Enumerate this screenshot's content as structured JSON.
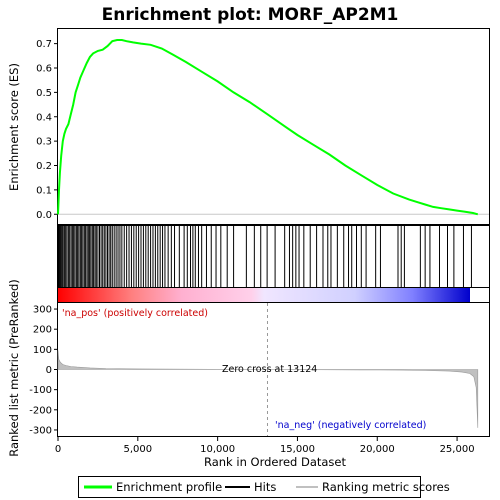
{
  "chart_data": {
    "type": "line",
    "title": "Enrichment plot: MORF_AP2M1",
    "xlabel": "Rank in Ordered Dataset",
    "xlim": [
      0,
      27000
    ],
    "x_ticks": [
      0,
      5000,
      10000,
      15000,
      20000,
      25000
    ],
    "x_tick_labels": [
      "0",
      "5,000",
      "10,000",
      "15,000",
      "20,000",
      "25,000"
    ],
    "es_panel": {
      "ylabel": "Enrichment score (ES)",
      "ylim": [
        -0.04,
        0.76
      ],
      "y_ticks": [
        0.0,
        0.1,
        0.2,
        0.3,
        0.4,
        0.5,
        0.6,
        0.7
      ],
      "y_tick_labels": [
        "0.0",
        "0.1",
        "0.2",
        "0.3",
        "0.4",
        "0.5",
        "0.6",
        "0.7"
      ],
      "series": [
        {
          "name": "Enrichment profile",
          "color": "#00ff00",
          "x": [
            0,
            60,
            120,
            200,
            300,
            400,
            500,
            650,
            800,
            950,
            1100,
            1250,
            1400,
            1600,
            1800,
            2000,
            2200,
            2500,
            2800,
            3100,
            3400,
            3700,
            4000,
            4300,
            4700,
            5200,
            5800,
            6500,
            7200,
            8000,
            9000,
            10000,
            11000,
            12000,
            13124,
            14000,
            15000,
            16000,
            17000,
            18000,
            19000,
            20000,
            21000,
            22000,
            22500,
            23000,
            23500,
            24000,
            24500,
            25000,
            25500,
            26000,
            26300
          ],
          "values": [
            0.0,
            0.1,
            0.17,
            0.24,
            0.3,
            0.33,
            0.35,
            0.37,
            0.41,
            0.45,
            0.5,
            0.53,
            0.56,
            0.59,
            0.62,
            0.645,
            0.66,
            0.67,
            0.675,
            0.69,
            0.71,
            0.715,
            0.715,
            0.71,
            0.705,
            0.7,
            0.695,
            0.68,
            0.655,
            0.625,
            0.585,
            0.545,
            0.5,
            0.46,
            0.41,
            0.37,
            0.325,
            0.285,
            0.245,
            0.2,
            0.16,
            0.12,
            0.085,
            0.06,
            0.05,
            0.04,
            0.03,
            0.025,
            0.02,
            0.015,
            0.01,
            0.005,
            0.0
          ]
        }
      ]
    },
    "hits": {
      "name": "Hits",
      "color": "#000000",
      "positions": [
        10,
        60,
        120,
        180,
        250,
        320,
        400,
        480,
        560,
        650,
        730,
        820,
        900,
        980,
        1060,
        1150,
        1230,
        1310,
        1400,
        1480,
        1560,
        1650,
        1730,
        1820,
        1900,
        1980,
        2060,
        2150,
        2230,
        2320,
        2400,
        2500,
        2600,
        2700,
        2800,
        2900,
        3000,
        3100,
        3200,
        3300,
        3400,
        3520,
        3640,
        3760,
        3880,
        4000,
        4150,
        4300,
        4450,
        4600,
        4750,
        4900,
        5050,
        5200,
        5350,
        5500,
        5650,
        5800,
        5950,
        6100,
        6250,
        6400,
        6550,
        6700,
        6900,
        7100,
        7300,
        7600,
        7900,
        8100,
        8300,
        8450,
        8600,
        8800,
        9000,
        9300,
        9600,
        9900,
        10200,
        10600,
        11000,
        11800,
        12300,
        12700,
        13100,
        13600,
        14200,
        14500,
        14700,
        14900,
        15100,
        15400,
        15800,
        16200,
        16600,
        16900,
        17100,
        17500,
        17900,
        18200,
        18400,
        18700,
        19000,
        19300,
        19900,
        20200,
        21300,
        21500,
        21700,
        22700,
        23000,
        23300,
        23900,
        24400,
        24800,
        25400,
        25900
      ]
    },
    "metric_panel": {
      "name": "Ranking metric scores",
      "color": "#c0c0c0",
      "ylabel": "Ranked list metric (PreRanked)",
      "ylim": [
        -330,
        330
      ],
      "y_ticks": [
        300,
        200,
        100,
        0,
        -100,
        -200,
        -300
      ],
      "y_tick_labels": [
        "300",
        "200",
        "100",
        "0",
        "-100",
        "-200",
        "-300"
      ],
      "x": [
        0,
        50,
        150,
        300,
        500,
        800,
        1200,
        2000,
        3000,
        5000,
        8000,
        11000,
        13124,
        16000,
        19000,
        21500,
        23000,
        24500,
        25300,
        25800,
        26050,
        26200,
        26300
      ],
      "values": [
        95,
        50,
        35,
        25,
        20,
        15,
        12,
        8,
        5,
        3,
        1.5,
        0.5,
        0,
        -1,
        -2,
        -3,
        -5,
        -8,
        -13,
        -20,
        -35,
        -90,
        -290
      ],
      "zero_cross_label": "Zero cross at 13124",
      "pos_label": "'na_pos' (positively correlated)",
      "neg_label": "'na_neg' (negatively correlated)",
      "zero_cross": 13124
    },
    "legend": {
      "placement": "bottom",
      "entries": [
        {
          "label": "Enrichment profile",
          "color": "#00ff00"
        },
        {
          "label": "Hits",
          "color": "#000000"
        },
        {
          "label": "Ranking metric scores",
          "color": "#c0c0c0"
        }
      ]
    },
    "grid": false
  }
}
